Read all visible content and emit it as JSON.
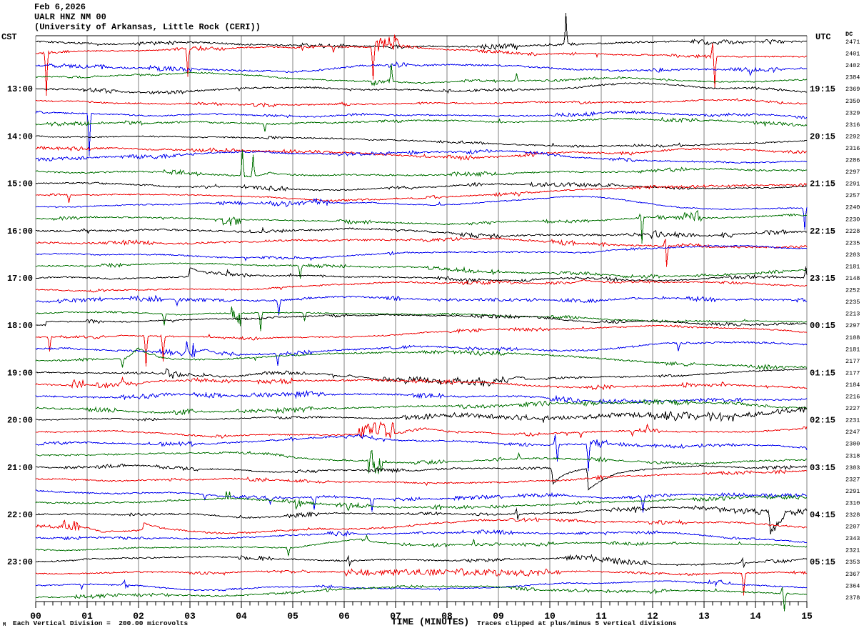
{
  "header": {
    "date": "Feb 6,2026",
    "station": "UALR HNZ NM 00",
    "institution": "(University of Arkansas, Little Rock (CERI))"
  },
  "corner_labels": {
    "left_tz": "CST",
    "right_tz": "UTC",
    "dc_column": "DC"
  },
  "footer": {
    "division_note": "Each Vertical Division =  200.00 microvolts",
    "axis_title": "TIME (MINUTES)",
    "clip_note": "Traces clipped at plus/minus 5 vertical divisions",
    "corner_mark": "M"
  },
  "colors": {
    "black": "#000000",
    "red": "#ee0000",
    "blue": "#0000ee",
    "green": "#007000",
    "grid": "#808080"
  },
  "chart_data": {
    "type": "line",
    "title": "UALR HNZ NM 00 helicorder seismogram",
    "xlabel": "TIME (MINUTES)",
    "x_range": [
      0,
      15
    ],
    "x_tick_labels": [
      "00",
      "01",
      "02",
      "03",
      "04",
      "05",
      "06",
      "07",
      "08",
      "09",
      "10",
      "11",
      "12",
      "13",
      "14",
      "15"
    ],
    "minor_ticks_per_minute": 6,
    "minutes_per_line": 15,
    "color_cycle": [
      "black",
      "red",
      "blue",
      "green"
    ],
    "rows": [
      {
        "dc": "2471"
      },
      {
        "dc": "2401"
      },
      {
        "dc": "2402"
      },
      {
        "dc": "2384"
      },
      {
        "dc": "2369",
        "cst": "13:00",
        "utc": "19:15"
      },
      {
        "dc": "2350"
      },
      {
        "dc": "2329"
      },
      {
        "dc": "2316"
      },
      {
        "dc": "2292",
        "cst": "14:00",
        "utc": "20:15"
      },
      {
        "dc": "2316"
      },
      {
        "dc": "2286"
      },
      {
        "dc": "2297"
      },
      {
        "dc": "2291",
        "cst": "15:00",
        "utc": "21:15"
      },
      {
        "dc": "2257"
      },
      {
        "dc": "2240"
      },
      {
        "dc": "2230"
      },
      {
        "dc": "2228",
        "cst": "16:00",
        "utc": "22:15"
      },
      {
        "dc": "2235"
      },
      {
        "dc": "2203"
      },
      {
        "dc": "2181"
      },
      {
        "dc": "2148",
        "cst": "17:00",
        "utc": "23:15"
      },
      {
        "dc": "2252"
      },
      {
        "dc": "2235"
      },
      {
        "dc": "2213"
      },
      {
        "dc": "2297",
        "cst": "18:00",
        "utc": "00:15"
      },
      {
        "dc": "2108"
      },
      {
        "dc": "2181"
      },
      {
        "dc": "2177"
      },
      {
        "dc": "2177",
        "cst": "19:00",
        "utc": "01:15"
      },
      {
        "dc": "2184"
      },
      {
        "dc": "2216"
      },
      {
        "dc": "2227"
      },
      {
        "dc": "2231",
        "cst": "20:00",
        "utc": "02:15"
      },
      {
        "dc": "2247"
      },
      {
        "dc": "2300"
      },
      {
        "dc": "2318"
      },
      {
        "dc": "2303",
        "cst": "21:00",
        "utc": "03:15"
      },
      {
        "dc": "2327"
      },
      {
        "dc": "2291"
      },
      {
        "dc": "2310"
      },
      {
        "dc": "2328",
        "cst": "22:00",
        "utc": "04:15"
      },
      {
        "dc": "2207"
      },
      {
        "dc": "2343"
      },
      {
        "dc": "2321"
      },
      {
        "dc": "2353",
        "cst": "23:00",
        "utc": "05:15"
      },
      {
        "dc": "2367"
      },
      {
        "dc": "2364"
      },
      {
        "dc": "2378"
      }
    ],
    "events": [
      {
        "r": 1,
        "t": "spike",
        "m": 10.31,
        "a": 42
      },
      {
        "r": 2,
        "t": "spike",
        "m": 0.21,
        "a": -60
      },
      {
        "r": 2,
        "t": "spike",
        "m": 2.95,
        "a": -40
      },
      {
        "r": 2,
        "t": "spike",
        "m": 5.8,
        "a": -9
      },
      {
        "r": 2,
        "t": "spike",
        "m": 6.57,
        "a": -46
      },
      {
        "r": 2,
        "t": "burst",
        "m": 6.6,
        "m1": 7.05,
        "a": 14
      },
      {
        "r": 2,
        "t": "hump",
        "m": 6.6,
        "m1": 7.9,
        "a": 6
      },
      {
        "r": 2,
        "t": "spike",
        "m": 13.17,
        "a": 18
      },
      {
        "r": 2,
        "t": "spike",
        "m": 13.2,
        "a": -44
      },
      {
        "r": 3,
        "t": "spike",
        "m": 13.9,
        "a": -7
      },
      {
        "r": 4,
        "t": "burst",
        "m": 6.55,
        "m1": 6.85,
        "a": -7
      },
      {
        "r": 4,
        "t": "spike",
        "m": 6.92,
        "a": 24
      },
      {
        "r": 4,
        "t": "spike",
        "m": 9.36,
        "a": 10
      },
      {
        "r": 7,
        "t": "spike",
        "m": 1.04,
        "a": -60
      },
      {
        "r": 8,
        "t": "spike",
        "m": 4.45,
        "a": -11
      },
      {
        "r": 12,
        "t": "spike",
        "m": 4.02,
        "a": 36
      },
      {
        "r": 12,
        "t": "spike",
        "m": 4.22,
        "a": 30
      },
      {
        "r": 12,
        "t": "hump",
        "m": 4.2,
        "m1": 5.4,
        "a": 6
      },
      {
        "r": 14,
        "t": "spike",
        "m": 0.64,
        "a": -12
      },
      {
        "r": 15,
        "t": "burst",
        "m": 4.4,
        "m1": 5.7,
        "a": 5
      },
      {
        "r": 15,
        "t": "spike",
        "m": 14.95,
        "a": -30
      },
      {
        "r": 16,
        "t": "burst",
        "m": 3.65,
        "m1": 4.0,
        "a": -9
      },
      {
        "r": 16,
        "t": "spike",
        "m": 11.77,
        "a": 14
      },
      {
        "r": 16,
        "t": "spike",
        "m": 11.8,
        "a": -40
      },
      {
        "r": 16,
        "t": "burst",
        "m": 12.6,
        "m1": 12.95,
        "a": 13
      },
      {
        "r": 17,
        "t": "noise",
        "m": 11.5,
        "m1": 12.5,
        "a": 3
      },
      {
        "r": 18,
        "t": "spike",
        "m": 12.25,
        "a": 20
      },
      {
        "r": 18,
        "t": "spike",
        "m": 12.28,
        "a": -34
      },
      {
        "r": 18,
        "t": "hump",
        "m": 12.3,
        "m1": 13.6,
        "a": 4
      },
      {
        "r": 20,
        "t": "spike",
        "m": 5.14,
        "a": -18
      },
      {
        "r": 20,
        "t": "burst",
        "m": 8.85,
        "m1": 9.05,
        "a": 8
      },
      {
        "r": 21,
        "t": "decay",
        "m": 2.99,
        "a": 12,
        "tau": 0.35
      },
      {
        "r": 21,
        "t": "spike",
        "m": 14.97,
        "a": 16
      },
      {
        "r": 22,
        "t": "hump",
        "m": 10.4,
        "m1": 11.3,
        "a": 4
      },
      {
        "r": 23,
        "t": "spike",
        "m": 2.75,
        "a": -8
      },
      {
        "r": 23,
        "t": "spike",
        "m": 4.72,
        "a": -22
      },
      {
        "r": 24,
        "t": "spike",
        "m": 2.51,
        "a": -16
      },
      {
        "r": 24,
        "t": "burst",
        "m": 3.8,
        "m1": 4.0,
        "a": -20
      },
      {
        "r": 24,
        "t": "spike",
        "m": 4.37,
        "a": -26
      },
      {
        "r": 24,
        "t": "spike",
        "m": 5.23,
        "a": -11
      },
      {
        "r": 25,
        "t": "step",
        "m": 0.2,
        "a": 5
      },
      {
        "r": 26,
        "t": "spike",
        "m": 0.27,
        "a": -20
      },
      {
        "r": 26,
        "t": "spike",
        "m": 2.15,
        "a": -44
      },
      {
        "r": 26,
        "t": "spike",
        "m": 2.47,
        "a": -36
      },
      {
        "r": 27,
        "t": "burst",
        "m": 2.88,
        "m1": 3.1,
        "a": 18
      },
      {
        "r": 27,
        "t": "hump",
        "m": 3.05,
        "m1": 3.9,
        "a": 7
      },
      {
        "r": 27,
        "t": "spike",
        "m": 4.7,
        "a": -16
      },
      {
        "r": 27,
        "t": "spike",
        "m": 12.5,
        "a": -12
      },
      {
        "r": 28,
        "t": "spike",
        "m": 1.68,
        "a": -12
      },
      {
        "r": 28,
        "t": "hump",
        "m": 1.75,
        "m1": 2.6,
        "a": 15
      },
      {
        "r": 29,
        "t": "wander",
        "m": 2.3,
        "m1": 9.5,
        "a": 5
      },
      {
        "r": 29,
        "t": "burst",
        "m": 2.55,
        "m1": 2.8,
        "a": 10
      },
      {
        "r": 29,
        "t": "noise",
        "m": 6.7,
        "m1": 9.2,
        "a": 4
      },
      {
        "r": 30,
        "t": "burst",
        "m": 0.7,
        "m1": 0.95,
        "a": 8
      },
      {
        "r": 30,
        "t": "spike",
        "m": 1.68,
        "a": 12
      },
      {
        "r": 31,
        "t": "burst",
        "m": 4.2,
        "m1": 5.6,
        "a": 4
      },
      {
        "r": 33,
        "t": "noise",
        "m": 7.1,
        "m1": 15,
        "a": 3
      },
      {
        "r": 33,
        "t": "noise",
        "m": 11.9,
        "m1": 13.6,
        "a": 5
      },
      {
        "r": 34,
        "t": "burst",
        "m": 6.3,
        "m1": 6.95,
        "a": 16
      },
      {
        "r": 34,
        "t": "hump",
        "m": 6.95,
        "m1": 9.0,
        "a": 8
      },
      {
        "r": 34,
        "t": "spike",
        "m": 10.6,
        "a": -8
      },
      {
        "r": 34,
        "t": "spike",
        "m": 11.6,
        "a": -7
      },
      {
        "r": 34,
        "t": "spike",
        "m": 11.9,
        "a": 6
      },
      {
        "r": 35,
        "t": "spike",
        "m": 10.1,
        "a": 14
      },
      {
        "r": 35,
        "t": "spike",
        "m": 10.14,
        "a": -24
      },
      {
        "r": 35,
        "t": "spike",
        "m": 10.75,
        "a": -38
      },
      {
        "r": 35,
        "t": "burst",
        "m": 10.8,
        "m1": 11.1,
        "a": 7
      },
      {
        "r": 36,
        "t": "burst",
        "m": 6.48,
        "m1": 6.72,
        "a": -18
      },
      {
        "r": 36,
        "t": "spike",
        "m": 6.55,
        "a": 16
      },
      {
        "r": 36,
        "t": "spike",
        "m": 9.4,
        "a": 8
      },
      {
        "r": 37,
        "t": "decay",
        "m": 10.07,
        "a": -22,
        "tau": 0.3
      },
      {
        "r": 37,
        "t": "decay",
        "m": 10.76,
        "a": -30,
        "tau": 0.5
      },
      {
        "r": 39,
        "t": "spike",
        "m": 3.3,
        "a": -8
      },
      {
        "r": 39,
        "t": "spike",
        "m": 4.57,
        "a": -10
      },
      {
        "r": 39,
        "t": "spike",
        "m": 5.42,
        "a": -18
      },
      {
        "r": 39,
        "t": "spike",
        "m": 6.54,
        "a": -18
      },
      {
        "r": 39,
        "t": "spike",
        "m": 11.82,
        "a": -22
      },
      {
        "r": 40,
        "t": "burst",
        "m": 3.7,
        "m1": 3.8,
        "a": 10
      },
      {
        "r": 40,
        "t": "burst",
        "m": 5.04,
        "m1": 5.16,
        "a": -16
      },
      {
        "r": 40,
        "t": "spike",
        "m": 6.08,
        "a": -8
      },
      {
        "r": 41,
        "t": "spike",
        "m": 9.35,
        "a": 9
      },
      {
        "r": 41,
        "t": "spike",
        "m": 9.38,
        "a": -10
      },
      {
        "r": 41,
        "t": "noise",
        "m": 12.8,
        "m1": 15,
        "a": 3
      },
      {
        "r": 41,
        "t": "decay",
        "m": 14.3,
        "a": -32,
        "tau": 0.25
      },
      {
        "r": 41,
        "t": "hump",
        "m": 14.45,
        "m1": 15,
        "a": 10
      },
      {
        "r": 42,
        "t": "burst",
        "m": 0.55,
        "m1": 0.85,
        "a": 8
      },
      {
        "r": 42,
        "t": "hump",
        "m": 1.0,
        "m1": 2.0,
        "a": -5
      },
      {
        "r": 42,
        "t": "decay",
        "m": 2.1,
        "a": 10,
        "tau": 0.4
      },
      {
        "r": 42,
        "t": "hump",
        "m": 2.3,
        "m1": 8.5,
        "a": -3
      },
      {
        "r": 44,
        "t": "spike",
        "m": 4.92,
        "a": -12
      },
      {
        "r": 44,
        "t": "hump",
        "m": 5.05,
        "m1": 9.3,
        "a": 10
      },
      {
        "r": 44,
        "t": "spike",
        "m": 6.43,
        "a": 7
      },
      {
        "r": 44,
        "t": "spike",
        "m": 8.52,
        "a": 8
      },
      {
        "r": 45,
        "t": "spike",
        "m": 6.08,
        "a": 10
      },
      {
        "r": 45,
        "t": "spike",
        "m": 6.11,
        "a": -10
      },
      {
        "r": 45,
        "t": "noise",
        "m": 10.3,
        "m1": 11.9,
        "a": 3
      },
      {
        "r": 45,
        "t": "spike",
        "m": 13.75,
        "a": 9
      },
      {
        "r": 45,
        "t": "spike",
        "m": 13.78,
        "a": -9
      },
      {
        "r": 46,
        "t": "noise",
        "m": 6.0,
        "m1": 10.2,
        "a": 4
      },
      {
        "r": 46,
        "t": "spike",
        "m": 13.78,
        "a": -32
      },
      {
        "r": 47,
        "t": "spike",
        "m": 0.9,
        "a": -7
      },
      {
        "r": 47,
        "t": "burst",
        "m": 1.67,
        "m1": 1.8,
        "a": 8
      },
      {
        "r": 47,
        "t": "burst",
        "m": 13.1,
        "m1": 13.35,
        "a": 6
      },
      {
        "r": 48,
        "t": "spike",
        "m": 14.52,
        "a": 8
      },
      {
        "r": 48,
        "t": "spike",
        "m": 14.56,
        "a": -24
      }
    ]
  }
}
